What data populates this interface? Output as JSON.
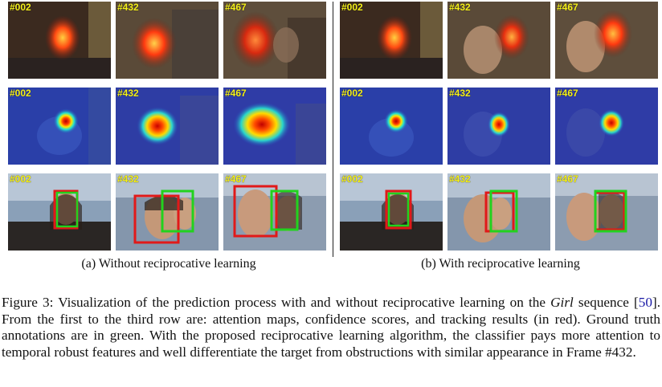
{
  "panels": [
    {
      "subcaption": "(a) Without reciprocative learning",
      "rows": [
        [
          "#002",
          "#432",
          "#467"
        ],
        [
          "#002",
          "#432",
          "#467"
        ],
        [
          "#002",
          "#432",
          "#467"
        ]
      ]
    },
    {
      "subcaption": "(b) With reciprocative learning",
      "rows": [
        [
          "#002",
          "#432",
          "#467"
        ],
        [
          "#002",
          "#432",
          "#467"
        ],
        [
          "#002",
          "#432",
          "#467"
        ]
      ]
    }
  ],
  "caption": {
    "part1": "Figure 3: Visualization of the prediction process with and without reciprocative learning on the ",
    "seq_name": "Girl",
    "part2": " sequence [",
    "cite": "50",
    "part3": "]. From the first to the third row are: attention maps, confidence scores, and tracking results (in red). Ground truth annotations are in green. With the proposed reciprocative learning algorithm, the classifier pays more attention to temporal robust features and well differentiate the target from obstructions with similar appearance in Frame #432."
  },
  "colors": {
    "frame_label": "#f5f01a",
    "tracking_box": "#e11919",
    "ground_truth_box": "#22d21e",
    "citation_link": "#1a1aa6"
  }
}
